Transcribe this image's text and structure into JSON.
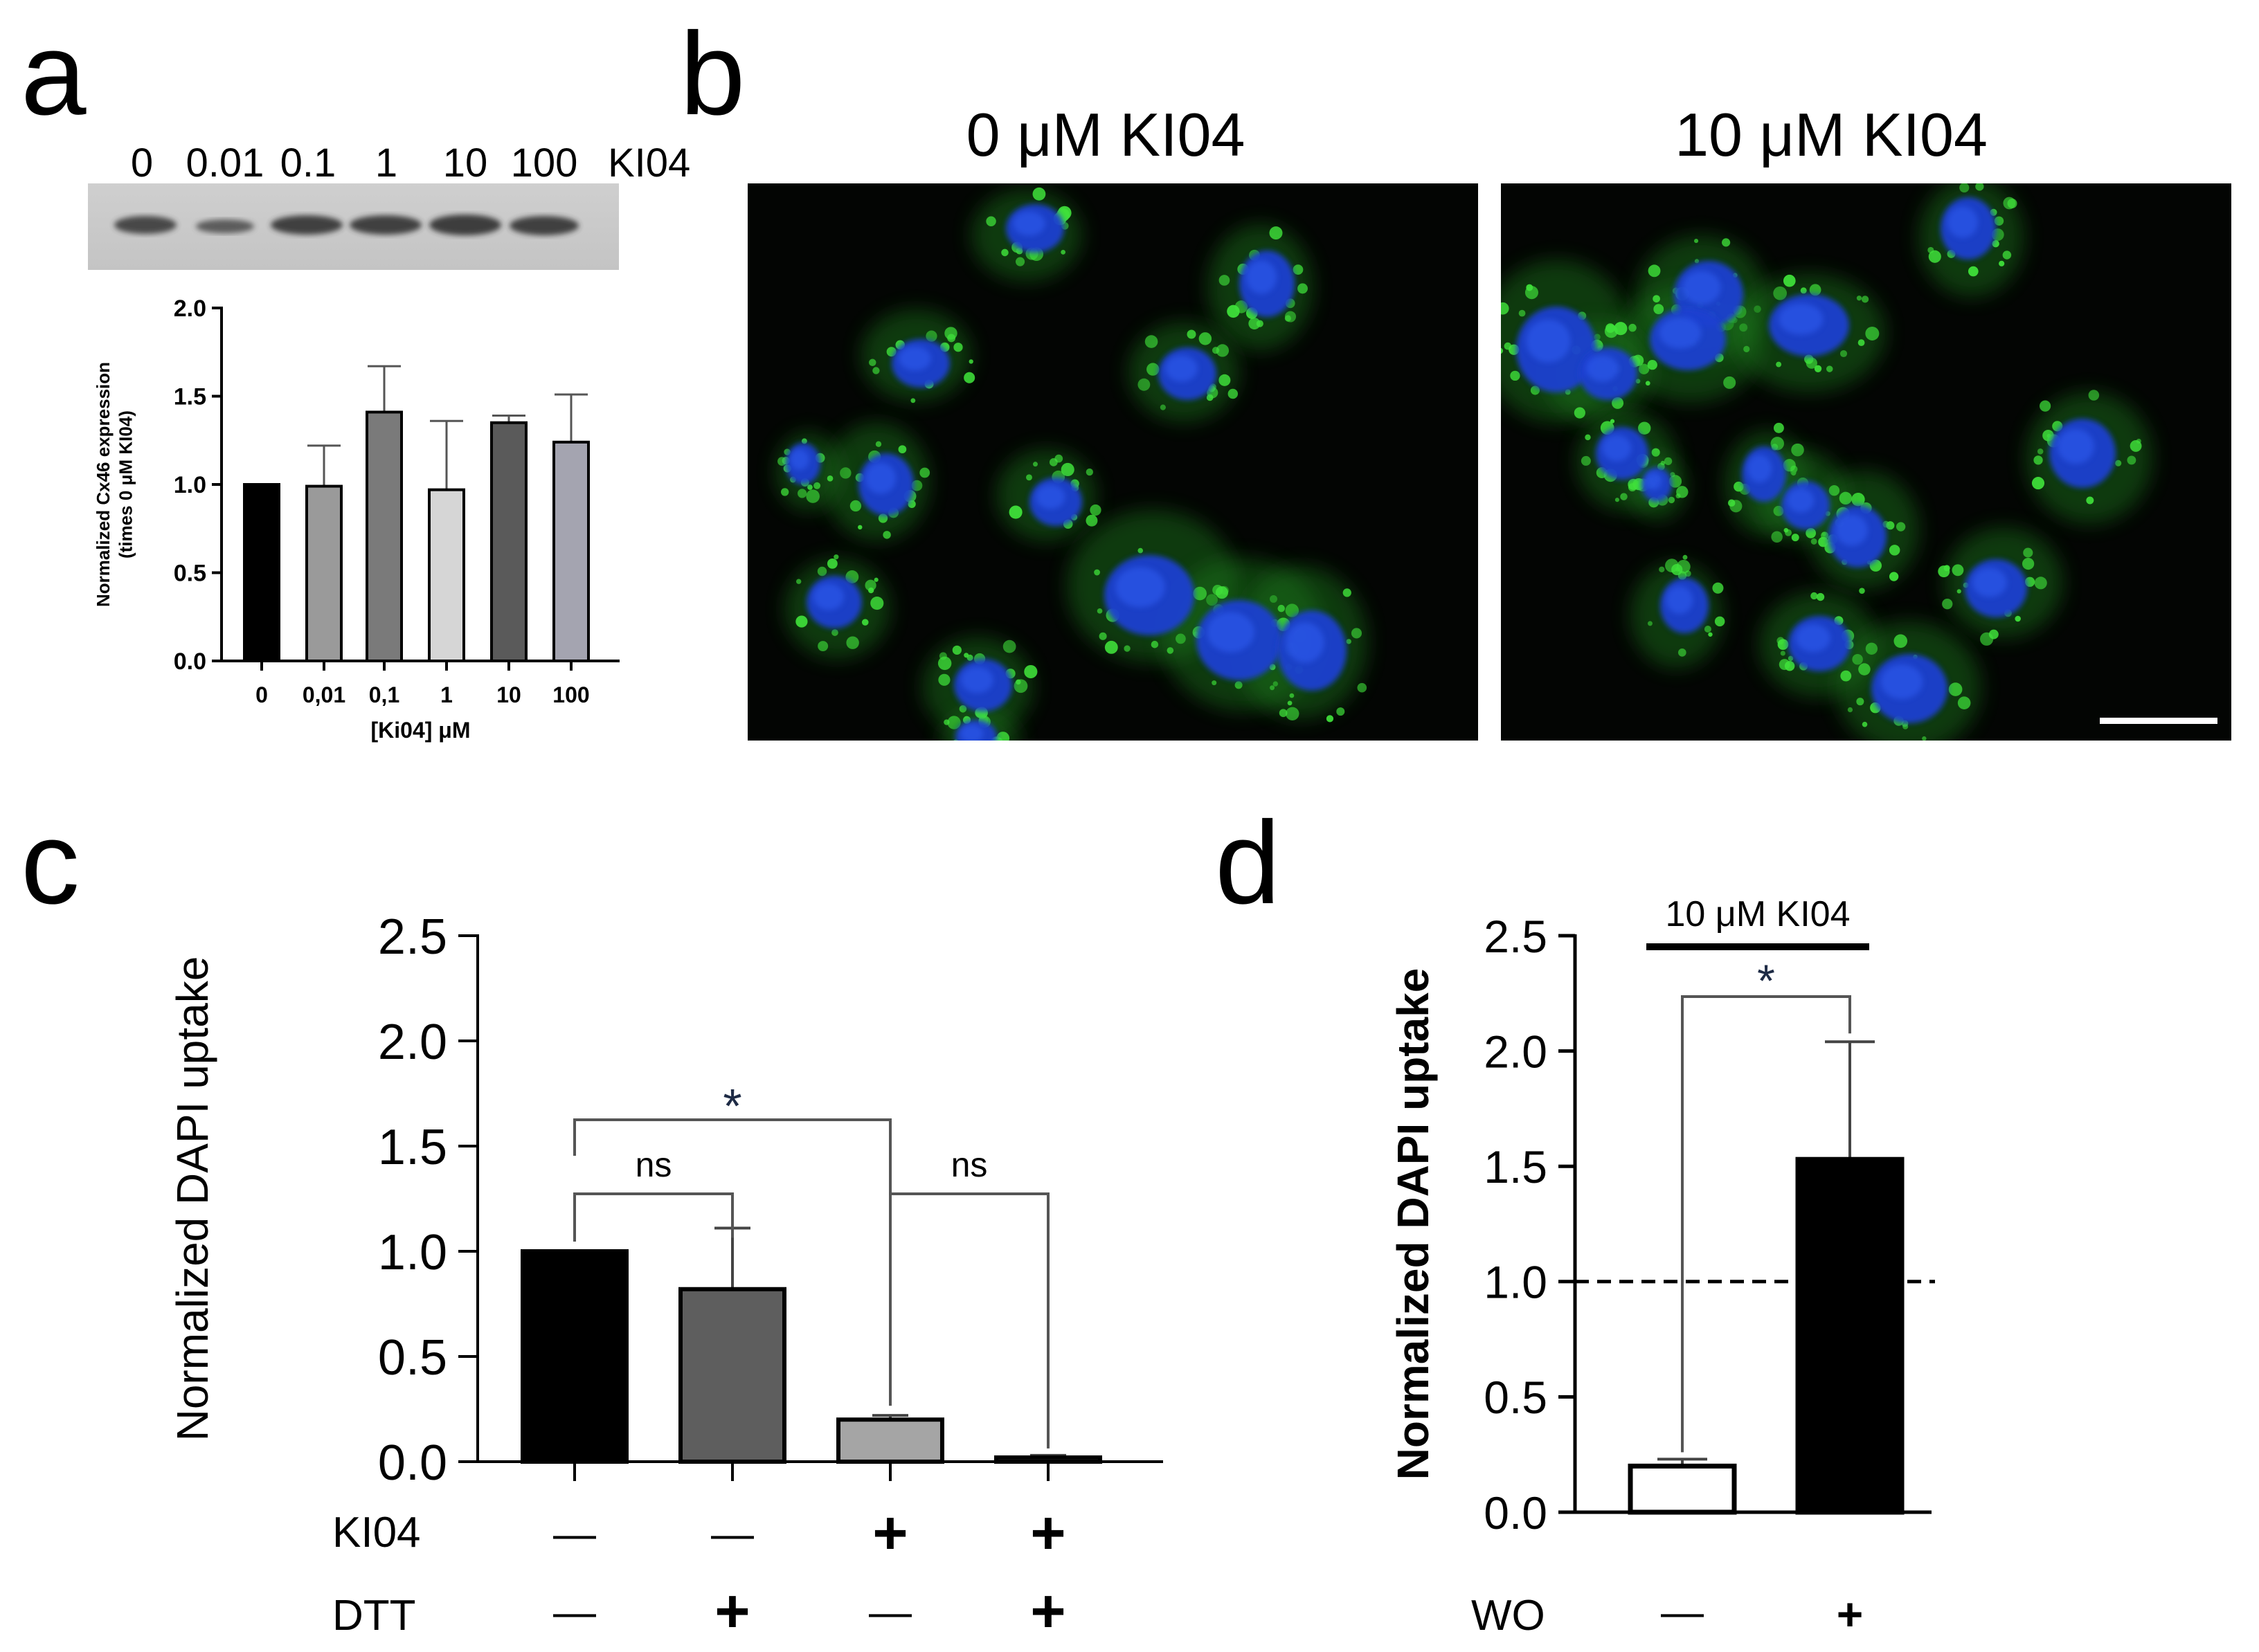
{
  "panels": {
    "a": {
      "letter": "a",
      "blot": {
        "lane_labels": [
          "0",
          "0.01",
          "0.1",
          "1",
          "10",
          "100"
        ],
        "treatment_label": "KI04"
      }
    },
    "b": {
      "letter": "b",
      "images": [
        {
          "title": "0 μM KI04"
        },
        {
          "title": "10 μM KI04"
        }
      ]
    },
    "c": {
      "letter": "c",
      "row_labels": {
        "ki04": "KI04",
        "dtt": "DTT"
      },
      "conditions": [
        {
          "ki04": "—",
          "dtt": "—"
        },
        {
          "ki04": "+",
          "dtt": "+"
        },
        {
          "ki04": "+",
          "dtt": "—"
        },
        {
          "ki04": "+",
          "dtt": "+"
        }
      ],
      "annotations": {
        "ns1": "ns",
        "star": "*",
        "ns2": "ns"
      }
    },
    "d": {
      "letter": "d",
      "bar_title": "10 μM KI04",
      "star": "*",
      "row_label": "WO",
      "conditions": [
        "—",
        "+"
      ]
    }
  },
  "chart_data": [
    {
      "id": "a",
      "type": "bar",
      "categories": [
        "0",
        "0,01",
        "0,1",
        "1",
        "10",
        "100"
      ],
      "values": [
        1.0,
        0.99,
        1.41,
        0.97,
        1.35,
        1.24
      ],
      "errors": [
        0,
        0.23,
        0.26,
        0.39,
        0.04,
        0.27
      ],
      "colors": [
        "#000000",
        "#9a9a9a",
        "#7a7a7a",
        "#d6d6d6",
        "#5a5a5a",
        "#a4a4b0"
      ],
      "xlabel": "[Ki04] μM",
      "ylabel": "Normalized Cx46 expression",
      "ylabel2": "(times 0 μM KI04)",
      "ylim": [
        0,
        2.0
      ],
      "yticks": [
        "0.0",
        "0.5",
        "1.0",
        "1.5",
        "2.0"
      ]
    },
    {
      "id": "c",
      "type": "bar",
      "values": [
        1.0,
        0.82,
        0.2,
        0.02
      ],
      "errors": [
        0,
        0.29,
        0.02,
        0.01
      ],
      "colors": [
        "#000000",
        "#5e5e5e",
        "#a5a5a5",
        "#ffffff"
      ],
      "ylabel": "Normalized DAPI uptake",
      "ylim": [
        0,
        2.5
      ],
      "yticks": [
        "0.0",
        "0.5",
        "1.0",
        "1.5",
        "2.0",
        "2.5"
      ]
    },
    {
      "id": "d",
      "type": "bar",
      "values": [
        0.2,
        1.53
      ],
      "errors": [
        0.03,
        0.51
      ],
      "colors": [
        "#ffffff",
        "#000000"
      ],
      "ylabel": "Normalized DAPI uptake",
      "ylim": [
        0,
        2.5
      ],
      "yticks": [
        "0.0",
        "0.5",
        "1.0",
        "1.5",
        "2.0",
        "2.5"
      ],
      "reference_line": 1.0
    }
  ]
}
